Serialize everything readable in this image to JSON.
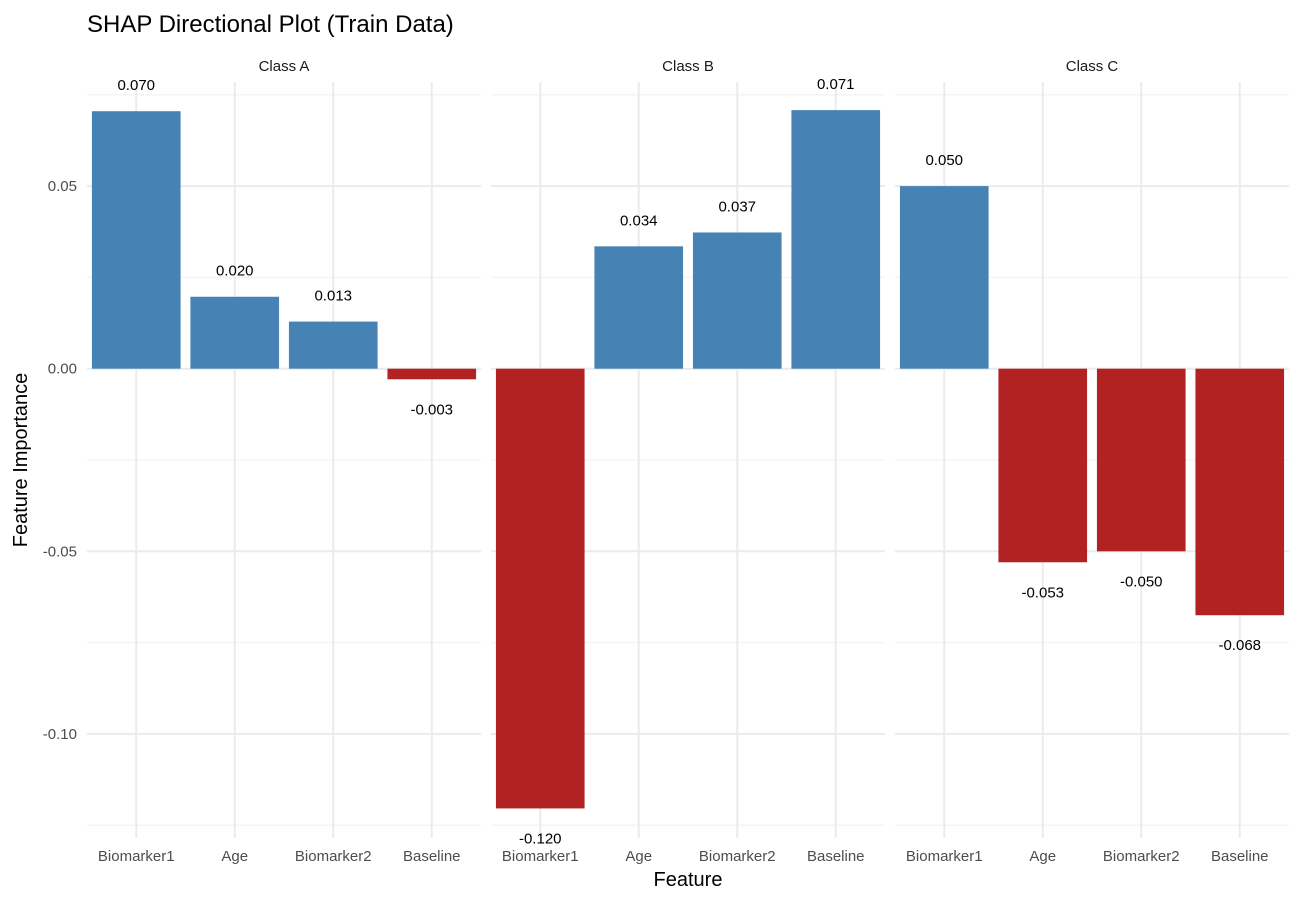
{
  "chart_data": {
    "type": "bar",
    "title": "SHAP Directional Plot (Train Data)",
    "xlabel": "Feature",
    "ylabel": "Feature Importance",
    "ylim": [
      -0.1285,
      0.0785
    ],
    "yticks": [
      0.05,
      0.0,
      -0.05,
      -0.1
    ],
    "ytick_labels": [
      "0.05",
      "0.00",
      "-0.05",
      "-0.10"
    ],
    "grid": true,
    "legend": "none",
    "colors": {
      "positive": "#4682b4",
      "negative": "#b22222"
    },
    "panels": [
      {
        "name": "Class A",
        "categories": [
          "Biomarker1",
          "Age",
          "Biomarker2",
          "Baseline"
        ],
        "values": [
          0.0705,
          0.0197,
          0.0129,
          -0.0029
        ],
        "labels": [
          "0.070",
          "0.020",
          "0.013",
          "-0.003"
        ]
      },
      {
        "name": "Class B",
        "categories": [
          "Biomarker1",
          "Age",
          "Biomarker2",
          "Baseline"
        ],
        "values": [
          -0.1204,
          0.0335,
          0.0373,
          0.0708
        ],
        "labels": [
          "-0.120",
          "0.034",
          "0.037",
          "0.071"
        ]
      },
      {
        "name": "Class C",
        "categories": [
          "Biomarker1",
          "Age",
          "Biomarker2",
          "Baseline"
        ],
        "values": [
          0.05,
          -0.053,
          -0.05,
          -0.0675
        ],
        "labels": [
          "0.050",
          "-0.053",
          "-0.050",
          "-0.068"
        ]
      }
    ]
  }
}
